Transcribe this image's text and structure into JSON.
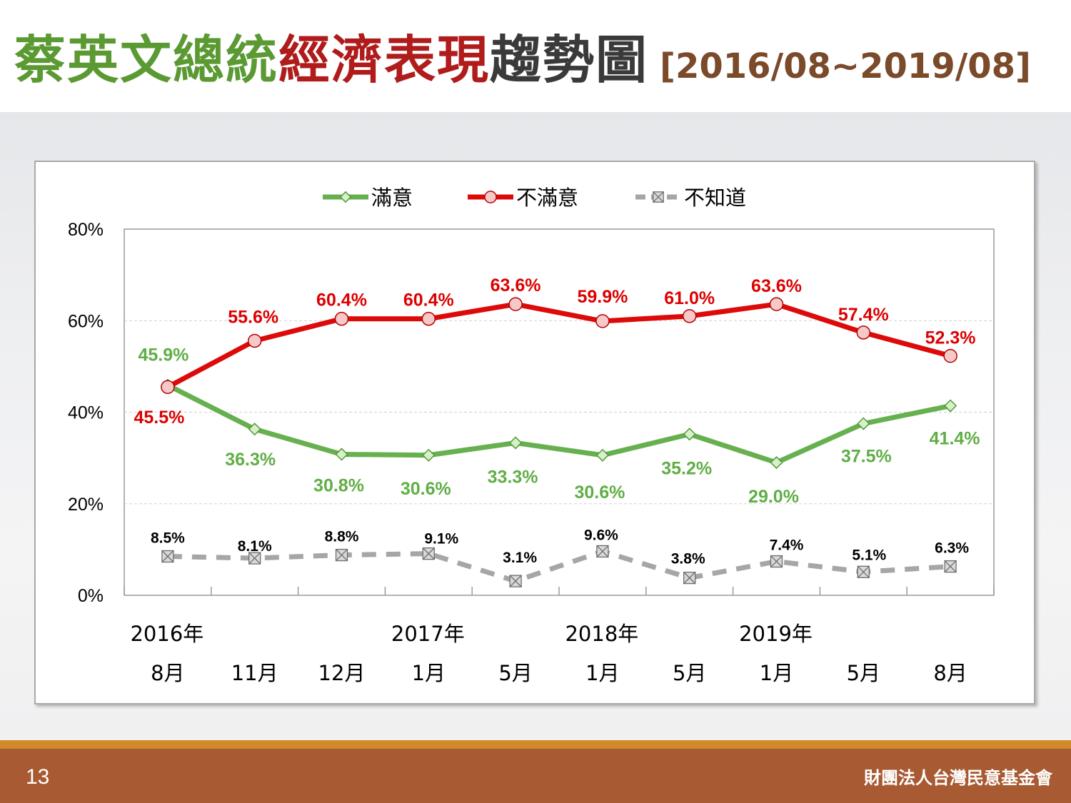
{
  "slide": {
    "title_green": "蔡英文總統",
    "title_red": "經濟表現",
    "title_dark": "趨勢圖",
    "title_range": "[2016/08~2019/08]",
    "page_number": "13",
    "organization": "財團法人台灣民意基金會"
  },
  "colors": {
    "green": "#67b04f",
    "red": "#dd0a0a",
    "gray": "#a6a6a6"
  },
  "chart_data": {
    "type": "line",
    "title": "",
    "xlabel": "",
    "ylabel": "",
    "ylim": [
      0,
      80
    ],
    "y_ticks": [
      "0%",
      "20%",
      "40%",
      "60%",
      "80%"
    ],
    "grid": true,
    "legend_position": "top",
    "x_year_labels": [
      "2016年",
      "",
      "",
      "2017年",
      "",
      "2018年",
      "",
      "2019年",
      "",
      ""
    ],
    "x_month_labels": [
      "8月",
      "11月",
      "12月",
      "1月",
      "5月",
      "1月",
      "5月",
      "1月",
      "5月",
      "8月"
    ],
    "series": [
      {
        "name": "滿意",
        "color": "#67b04f",
        "marker": "diamond",
        "dashed": false,
        "values": [
          45.9,
          36.3,
          30.8,
          30.6,
          33.3,
          30.6,
          35.2,
          29.0,
          37.5,
          41.4
        ],
        "labels": [
          "45.9%",
          "36.3%",
          "30.8%",
          "30.6%",
          "33.3%",
          "30.6%",
          "35.2%",
          "29.0%",
          "37.5%",
          "41.4%"
        ]
      },
      {
        "name": "不滿意",
        "color": "#dd0a0a",
        "marker": "circle",
        "dashed": false,
        "values": [
          45.5,
          55.6,
          60.4,
          60.4,
          63.6,
          59.9,
          61.0,
          63.6,
          57.4,
          52.3
        ],
        "labels": [
          "45.5%",
          "55.6%",
          "60.4%",
          "60.4%",
          "63.6%",
          "59.9%",
          "61.0%",
          "63.6%",
          "57.4%",
          "52.3%"
        ]
      },
      {
        "name": "不知道",
        "color": "#a6a6a6",
        "marker": "square-x",
        "dashed": true,
        "values": [
          8.5,
          8.1,
          8.8,
          9.1,
          3.1,
          9.6,
          3.8,
          7.4,
          5.1,
          6.3
        ],
        "labels": [
          "8.5%",
          "8.1%",
          "8.8%",
          "9.1%",
          "3.1%",
          "9.6%",
          "3.8%",
          "7.4%",
          "5.1%",
          "6.3%"
        ]
      }
    ]
  }
}
